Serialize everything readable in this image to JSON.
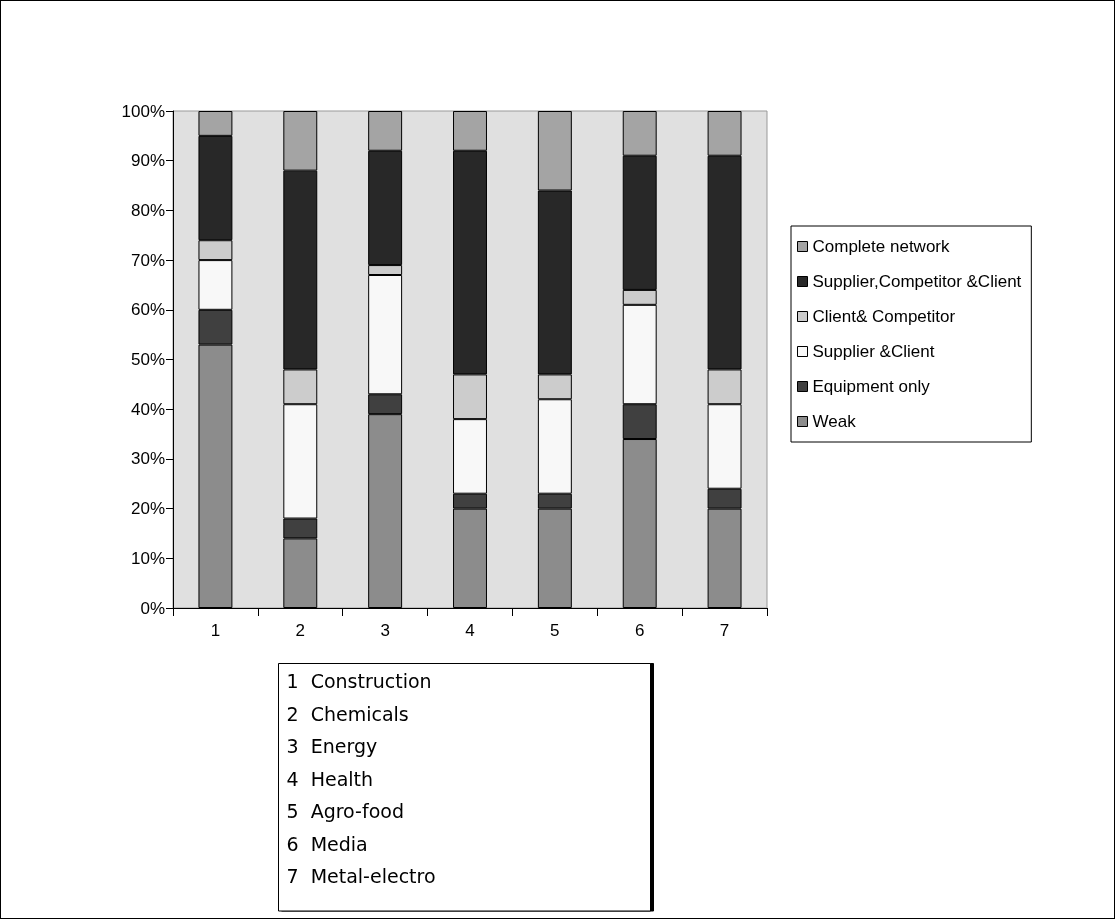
{
  "chart_data": {
    "type": "bar",
    "stacked": true,
    "categories": [
      "1",
      "2",
      "3",
      "4",
      "5",
      "6",
      "7"
    ],
    "series": [
      {
        "name": "Weak",
        "color": "#8c8c8c",
        "values": [
          53,
          14,
          39,
          20,
          20,
          34,
          20
        ]
      },
      {
        "name": "Equipment only",
        "color": "#404040",
        "values": [
          7,
          4,
          4,
          3,
          3,
          7,
          4
        ]
      },
      {
        "name": "Supplier &Client",
        "color": "#f8f8f8",
        "values": [
          10,
          23,
          24,
          15,
          19,
          20,
          17
        ]
      },
      {
        "name": "Client& Competitor",
        "color": "#cccccc",
        "values": [
          4,
          7,
          2,
          9,
          5,
          3,
          7
        ]
      },
      {
        "name": "Supplier,Competitor &Client",
        "color": "#282828",
        "values": [
          21,
          40,
          23,
          45,
          37,
          27,
          43
        ]
      },
      {
        "name": "Complete network",
        "color": "#a4a4a4",
        "values": [
          5,
          12,
          8,
          8,
          16,
          9,
          9
        ]
      }
    ],
    "ylim": [
      0,
      100
    ],
    "yticks": [
      {
        "value": 0,
        "label": "0%"
      },
      {
        "value": 10,
        "label": "10%"
      },
      {
        "value": 20,
        "label": "20%"
      },
      {
        "value": 30,
        "label": "30%"
      },
      {
        "value": 40,
        "label": "40%"
      },
      {
        "value": 50,
        "label": "50%"
      },
      {
        "value": 60,
        "label": "60%"
      },
      {
        "value": 70,
        "label": "70%"
      },
      {
        "value": 80,
        "label": "80%"
      },
      {
        "value": 90,
        "label": "90%"
      },
      {
        "value": 100,
        "label": "100%"
      }
    ],
    "grid": false,
    "legend": "right",
    "annotations": [
      "1  Construction",
      "2  Chemicals",
      "3  Energy",
      "4  Health",
      "5  Agro-food",
      "6  Media",
      "7  Metal-electro"
    ]
  }
}
